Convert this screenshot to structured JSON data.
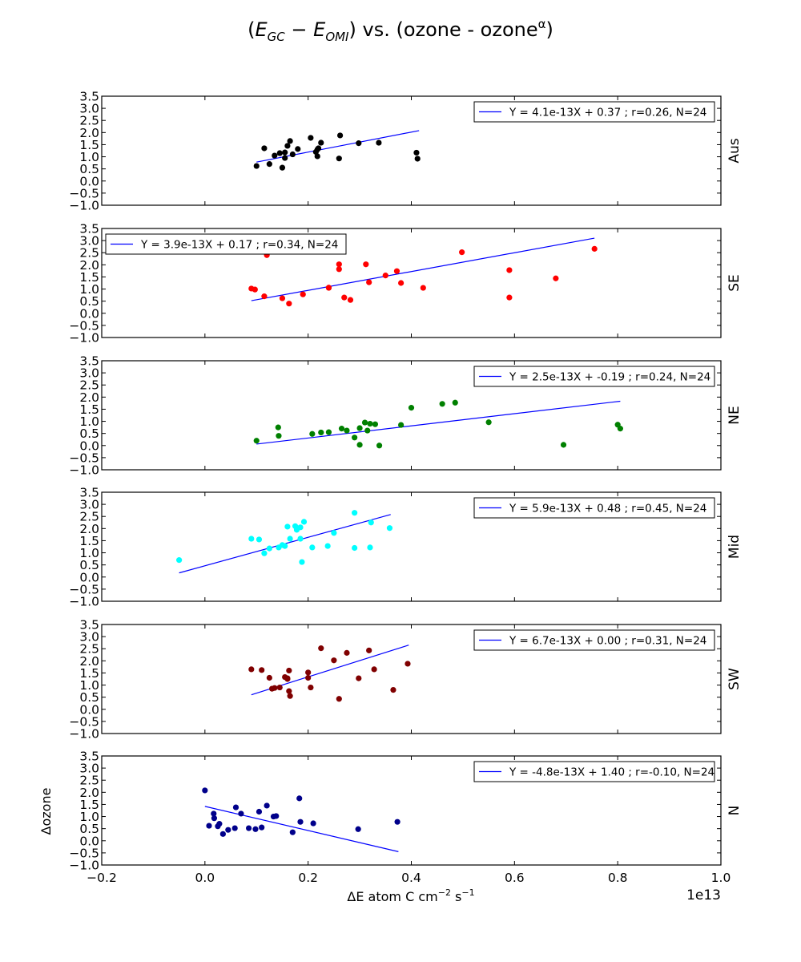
{
  "title": {
    "left_paren": "(",
    "e1": "E",
    "e1_sub": "GC",
    "minus": " − ",
    "e2": "E",
    "e2_sub": "OMI",
    "mid": ") vs. (ozone - ozone",
    "sup": "α",
    "close": ")"
  },
  "xlabel": {
    "pre": "ΔE atom C cm",
    "sup1": "−2",
    "mid": " s",
    "sup2": "−1"
  },
  "ylabel": "Δozone",
  "x_offset_label": "1e13",
  "chart_data": [
    {
      "type": "scatter",
      "name": "Aus",
      "color": "#000000",
      "xlim": [
        -0.2,
        1.0
      ],
      "ylim": [
        -1.0,
        3.5
      ],
      "legend": "Y = 4.1e-13X + 0.37 ; r=0.26, N=24",
      "legend_loc": "top-right",
      "fit": {
        "x": [
          0.1,
          0.415
        ],
        "y": [
          0.78,
          2.08
        ]
      },
      "points": [
        [
          0.1,
          0.62
        ],
        [
          0.115,
          1.35
        ],
        [
          0.125,
          0.7
        ],
        [
          0.135,
          1.05
        ],
        [
          0.145,
          1.15
        ],
        [
          0.15,
          0.55
        ],
        [
          0.155,
          0.95
        ],
        [
          0.155,
          1.18
        ],
        [
          0.16,
          1.45
        ],
        [
          0.165,
          1.65
        ],
        [
          0.17,
          1.1
        ],
        [
          0.18,
          1.32
        ],
        [
          0.205,
          1.78
        ],
        [
          0.215,
          1.2
        ],
        [
          0.218,
          1.02
        ],
        [
          0.22,
          1.35
        ],
        [
          0.225,
          1.58
        ],
        [
          0.26,
          0.93
        ],
        [
          0.262,
          1.88
        ],
        [
          0.298,
          1.56
        ],
        [
          0.337,
          1.58
        ],
        [
          0.41,
          1.17
        ],
        [
          0.412,
          0.92
        ],
        [
          0.218,
          1.3
        ]
      ]
    },
    {
      "type": "scatter",
      "name": "SE",
      "color": "#ff0000",
      "xlim": [
        -0.2,
        1.0
      ],
      "ylim": [
        -1.0,
        3.5
      ],
      "legend": "Y = 3.9e-13X + 0.17 ; r=0.34, N=24",
      "legend_loc": "top-left",
      "fit": {
        "x": [
          0.09,
          0.755
        ],
        "y": [
          0.52,
          3.1
        ]
      },
      "points": [
        [
          0.09,
          1.02
        ],
        [
          0.097,
          0.98
        ],
        [
          0.115,
          0.7
        ],
        [
          0.12,
          2.4
        ],
        [
          0.15,
          0.62
        ],
        [
          0.163,
          0.4
        ],
        [
          0.19,
          0.78
        ],
        [
          0.24,
          1.05
        ],
        [
          0.26,
          2.02
        ],
        [
          0.26,
          1.82
        ],
        [
          0.27,
          0.65
        ],
        [
          0.282,
          0.55
        ],
        [
          0.312,
          2.02
        ],
        [
          0.318,
          1.28
        ],
        [
          0.35,
          1.56
        ],
        [
          0.372,
          1.74
        ],
        [
          0.38,
          1.25
        ],
        [
          0.423,
          1.05
        ],
        [
          0.498,
          2.52
        ],
        [
          0.59,
          1.78
        ],
        [
          0.59,
          0.65
        ],
        [
          0.68,
          1.44
        ],
        [
          0.755,
          2.66
        ],
        [
          0.24,
          1.06
        ]
      ]
    },
    {
      "type": "scatter",
      "name": "NE",
      "color": "#008000",
      "xlim": [
        -0.2,
        1.0
      ],
      "ylim": [
        -1.0,
        3.5
      ],
      "legend": "Y = 2.5e-13X + -0.19 ; r=0.24, N=24",
      "legend_loc": "top-right",
      "fit": {
        "x": [
          0.1,
          0.805
        ],
        "y": [
          0.06,
          1.83
        ]
      },
      "points": [
        [
          0.1,
          0.2
        ],
        [
          0.142,
          0.75
        ],
        [
          0.143,
          0.4
        ],
        [
          0.208,
          0.48
        ],
        [
          0.225,
          0.54
        ],
        [
          0.24,
          0.55
        ],
        [
          0.265,
          0.7
        ],
        [
          0.275,
          0.62
        ],
        [
          0.29,
          0.33
        ],
        [
          0.3,
          0.03
        ],
        [
          0.3,
          0.72
        ],
        [
          0.31,
          0.95
        ],
        [
          0.315,
          0.62
        ],
        [
          0.32,
          0.9
        ],
        [
          0.33,
          0.88
        ],
        [
          0.338,
          0.0
        ],
        [
          0.38,
          0.85
        ],
        [
          0.4,
          1.56
        ],
        [
          0.46,
          1.72
        ],
        [
          0.485,
          1.77
        ],
        [
          0.55,
          0.96
        ],
        [
          0.695,
          0.03
        ],
        [
          0.8,
          0.86
        ],
        [
          0.805,
          0.7
        ]
      ]
    },
    {
      "type": "scatter",
      "name": "Mid",
      "color": "#00ffff",
      "xlim": [
        -0.2,
        1.0
      ],
      "ylim": [
        -1.0,
        3.5
      ],
      "legend": "Y = 5.9e-13X + 0.48 ; r=0.45, N=24",
      "legend_loc": "top-right",
      "fit": {
        "x": [
          -0.05,
          0.36
        ],
        "y": [
          0.17,
          2.58
        ]
      },
      "points": [
        [
          -0.05,
          0.7
        ],
        [
          0.09,
          1.58
        ],
        [
          0.105,
          1.55
        ],
        [
          0.115,
          0.98
        ],
        [
          0.125,
          1.18
        ],
        [
          0.143,
          1.22
        ],
        [
          0.15,
          1.32
        ],
        [
          0.155,
          1.28
        ],
        [
          0.16,
          2.08
        ],
        [
          0.165,
          1.58
        ],
        [
          0.175,
          2.1
        ],
        [
          0.178,
          1.95
        ],
        [
          0.185,
          2.05
        ],
        [
          0.185,
          1.58
        ],
        [
          0.188,
          0.62
        ],
        [
          0.192,
          2.28
        ],
        [
          0.208,
          1.22
        ],
        [
          0.238,
          1.28
        ],
        [
          0.25,
          1.82
        ],
        [
          0.29,
          2.65
        ],
        [
          0.29,
          1.2
        ],
        [
          0.32,
          1.22
        ],
        [
          0.322,
          2.25
        ],
        [
          0.358,
          2.02
        ]
      ]
    },
    {
      "type": "scatter",
      "name": "SW",
      "color": "#800000",
      "xlim": [
        -0.2,
        1.0
      ],
      "ylim": [
        -1.0,
        3.5
      ],
      "legend": "Y = 6.7e-13X + 0.00 ; r=0.31, N=24",
      "legend_loc": "top-right",
      "fit": {
        "x": [
          0.09,
          0.395
        ],
        "y": [
          0.6,
          2.65
        ]
      },
      "points": [
        [
          0.09,
          1.65
        ],
        [
          0.11,
          1.62
        ],
        [
          0.125,
          1.3
        ],
        [
          0.13,
          0.85
        ],
        [
          0.135,
          0.88
        ],
        [
          0.145,
          0.9
        ],
        [
          0.155,
          1.33
        ],
        [
          0.16,
          1.28
        ],
        [
          0.163,
          1.6
        ],
        [
          0.163,
          0.75
        ],
        [
          0.165,
          0.55
        ],
        [
          0.2,
          1.52
        ],
        [
          0.2,
          1.3
        ],
        [
          0.205,
          0.9
        ],
        [
          0.225,
          2.52
        ],
        [
          0.25,
          2.02
        ],
        [
          0.26,
          0.43
        ],
        [
          0.275,
          2.33
        ],
        [
          0.298,
          1.28
        ],
        [
          0.318,
          2.43
        ],
        [
          0.328,
          1.65
        ],
        [
          0.365,
          0.8
        ],
        [
          0.393,
          1.88
        ],
        [
          0.16,
          1.25
        ]
      ]
    },
    {
      "type": "scatter",
      "name": "N",
      "color": "#00008b",
      "xlim": [
        -0.2,
        1.0
      ],
      "ylim": [
        -1.0,
        3.5
      ],
      "legend": "Y = -4.8e-13X + 1.40 ; r=-0.10, N=24",
      "legend_loc": "top-right",
      "fit": {
        "x": [
          0.0,
          0.375
        ],
        "y": [
          1.42,
          -0.45
        ]
      },
      "points": [
        [
          0.0,
          2.08
        ],
        [
          0.008,
          0.62
        ],
        [
          0.017,
          1.12
        ],
        [
          0.018,
          0.93
        ],
        [
          0.025,
          0.6
        ],
        [
          0.028,
          0.7
        ],
        [
          0.035,
          0.28
        ],
        [
          0.045,
          0.45
        ],
        [
          0.058,
          0.52
        ],
        [
          0.06,
          1.38
        ],
        [
          0.07,
          1.12
        ],
        [
          0.085,
          0.52
        ],
        [
          0.098,
          0.48
        ],
        [
          0.105,
          1.2
        ],
        [
          0.11,
          0.55
        ],
        [
          0.12,
          1.45
        ],
        [
          0.133,
          1.0
        ],
        [
          0.138,
          1.02
        ],
        [
          0.17,
          0.35
        ],
        [
          0.183,
          1.75
        ],
        [
          0.185,
          0.78
        ],
        [
          0.21,
          0.72
        ],
        [
          0.297,
          0.48
        ],
        [
          0.373,
          0.78
        ]
      ]
    }
  ]
}
